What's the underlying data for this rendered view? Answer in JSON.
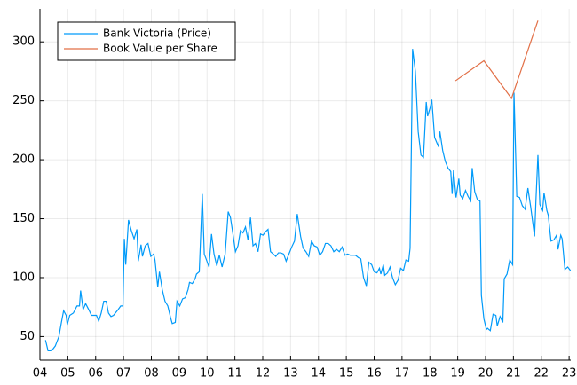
{
  "chart_data": {
    "type": "line",
    "xlim": [
      4,
      23.06
    ],
    "ylim": [
      30,
      328
    ],
    "xticks": [
      {
        "value": 4,
        "label": "04"
      },
      {
        "value": 5,
        "label": "05"
      },
      {
        "value": 6,
        "label": "06"
      },
      {
        "value": 7,
        "label": "07"
      },
      {
        "value": 8,
        "label": "08"
      },
      {
        "value": 9,
        "label": "09"
      },
      10,
      11,
      12,
      13,
      14,
      15,
      16,
      17,
      18,
      19,
      20,
      21,
      22,
      23
    ],
    "yticks": [
      50,
      100,
      150,
      200,
      250,
      300
    ],
    "grid": true,
    "legend": "top left",
    "series": [
      {
        "name": "Bank Victoria (Price)",
        "color": "#009af9",
        "x": [
          4.2,
          4.29,
          4.42,
          4.55,
          4.68,
          4.77,
          4.85,
          4.94,
          4.98,
          5.07,
          5.2,
          5.33,
          5.42,
          5.46,
          5.55,
          5.64,
          5.77,
          5.85,
          6.03,
          6.11,
          6.2,
          6.29,
          6.38,
          6.46,
          6.55,
          6.64,
          6.81,
          6.9,
          6.98,
          7.03,
          7.08,
          7.18,
          7.28,
          7.38,
          7.48,
          7.53,
          7.63,
          7.68,
          7.78,
          7.88,
          7.98,
          8.08,
          8.13,
          8.23,
          8.29,
          8.39,
          8.49,
          8.59,
          8.69,
          8.75,
          8.86,
          8.92,
          9.02,
          9.12,
          9.22,
          9.32,
          9.37,
          9.47,
          9.57,
          9.62,
          9.72,
          9.83,
          9.9,
          9.98,
          10.07,
          10.16,
          10.25,
          10.35,
          10.44,
          10.54,
          10.65,
          10.76,
          10.84,
          10.93,
          11.02,
          11.11,
          11.2,
          11.29,
          11.38,
          11.47,
          11.56,
          11.65,
          11.74,
          11.83,
          11.92,
          12.01,
          12.1,
          12.19,
          12.28,
          12.38,
          12.47,
          12.56,
          12.65,
          12.75,
          12.84,
          12.94,
          13.04,
          13.14,
          13.24,
          13.36,
          13.45,
          13.55,
          13.65,
          13.75,
          13.85,
          13.95,
          14.05,
          14.15,
          14.25,
          14.35,
          14.45,
          14.55,
          14.65,
          14.75,
          14.85,
          14.95,
          15.05,
          15.14,
          15.33,
          15.43,
          15.52,
          15.62,
          15.72,
          15.81,
          15.91,
          16.0,
          16.1,
          16.19,
          16.24,
          16.33,
          16.38,
          16.48,
          16.57,
          16.66,
          16.76,
          16.86,
          16.95,
          17.05,
          17.14,
          17.24,
          17.29,
          17.38,
          17.48,
          17.58,
          17.68,
          17.77,
          17.87,
          17.92,
          18.02,
          18.07,
          18.17,
          18.31,
          18.36,
          18.46,
          18.55,
          18.65,
          18.75,
          18.8,
          18.85,
          18.94,
          19.04,
          19.09,
          19.18,
          19.28,
          19.37,
          19.47,
          19.52,
          19.61,
          19.71,
          19.8,
          19.85,
          19.94,
          20.03,
          20.07,
          20.17,
          20.27,
          20.37,
          20.42,
          20.52,
          20.62,
          20.67,
          20.77,
          20.87,
          20.97,
          21.02,
          21.12,
          21.22,
          21.32,
          21.42,
          21.52,
          21.62,
          21.76,
          21.81,
          21.88,
          21.95,
          22.05,
          22.1,
          22.2,
          22.25,
          22.35,
          22.45,
          22.55,
          22.6,
          22.7,
          22.75,
          22.85,
          22.95,
          23.05
        ],
        "values": [
          47,
          38,
          38,
          42,
          50,
          62,
          72,
          68,
          60,
          68,
          70,
          76,
          76,
          89,
          73,
          78,
          72,
          68,
          68,
          63,
          70,
          80,
          80,
          70,
          67,
          68,
          73,
          76,
          76,
          133,
          111,
          149,
          140,
          133,
          141,
          114,
          128,
          118,
          127,
          129,
          118,
          120,
          115,
          92,
          105,
          90,
          80,
          76,
          66,
          61,
          62,
          80,
          76,
          82,
          83,
          90,
          96,
          95,
          99,
          103,
          105,
          171,
          120,
          115,
          109,
          137,
          120,
          110,
          119,
          109,
          120,
          156,
          151,
          137,
          122,
          127,
          140,
          138,
          143,
          132,
          151,
          127,
          129,
          122,
          137,
          136,
          139,
          141,
          122,
          120,
          118,
          121,
          121,
          120,
          114,
          120,
          126,
          131,
          154,
          135,
          125,
          122,
          118,
          131,
          127,
          126,
          119,
          122,
          129,
          129,
          127,
          122,
          124,
          122,
          126,
          119,
          120,
          119,
          119,
          117,
          116,
          100,
          93,
          113,
          111,
          105,
          104,
          108,
          103,
          111,
          102,
          104,
          109,
          100,
          94,
          98,
          108,
          106,
          115,
          114,
          125,
          294,
          275,
          224,
          204,
          202,
          249,
          237,
          245,
          251,
          219,
          211,
          224,
          208,
          199,
          193,
          190,
          171,
          191,
          168,
          184,
          170,
          167,
          174,
          169,
          165,
          193,
          173,
          166,
          165,
          85,
          65,
          56,
          57,
          55,
          69,
          68,
          59,
          67,
          62,
          99,
          103,
          115,
          111,
          257,
          169,
          168,
          161,
          158,
          176,
          160,
          135,
          166,
          204,
          162,
          157,
          172,
          157,
          153,
          131,
          132,
          136,
          124,
          136,
          133,
          107,
          109,
          106
        ]
      },
      {
        "name": "Book Value per Share",
        "color": "#e26f46",
        "x": [
          18.92,
          19.94,
          20.93,
          21.88
        ],
        "values": [
          267,
          284,
          252,
          318
        ]
      }
    ]
  }
}
